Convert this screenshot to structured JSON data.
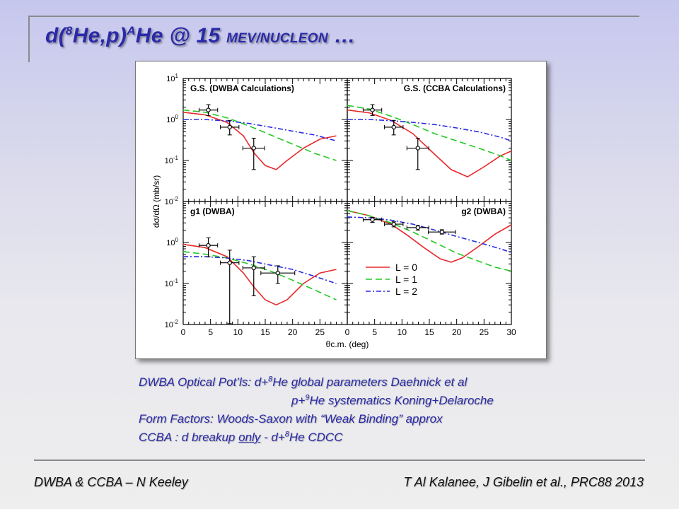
{
  "slide": {
    "title_pre": "d(",
    "title_sup1": "8",
    "title_mid": "He,p)",
    "title_sup2": "A",
    "title_post": "He @ 15 ",
    "title_small": "MEV/NUCLEON",
    "title_end": " …"
  },
  "notes": {
    "l1_a": "DWBA Optical Pot’ls:  d+",
    "l1_sup": "8",
    "l1_b": "He global parameters Daehnick et al",
    "l2_a": "p+",
    "l2_sup": "9",
    "l2_b": "He systematics  Koning+Delaroche",
    "l3": "Form Factors:  Woods-Saxon with “Weak Binding” approx",
    "l4_a": "CCBA :  d breakup ",
    "l4_u": "only",
    "l4_b": "  - d+",
    "l4_sup": "8",
    "l4_c": "He CDCC"
  },
  "footer": {
    "left": "DWBA & CCBA  – N Keeley",
    "right": "T Al Kalanee, J Gibelin et al., PRC88 2013"
  },
  "colors": {
    "title": "#2a2aa8",
    "L0": "#e8282b",
    "L1": "#22c922",
    "L2": "#2a2ae0"
  },
  "chart_data": {
    "type": "line",
    "xlabel": "θc.m. (deg)",
    "ylabel": "dσ/dΩ (mb/sr)",
    "xlim": [
      0,
      30
    ],
    "ylim": [
      0.01,
      10
    ],
    "yscale": "log",
    "x_ticks": [
      "0",
      "5",
      "10",
      "15",
      "20",
      "25"
    ],
    "x_ticks_last": [
      "0",
      "5",
      "10",
      "15",
      "20",
      "25",
      "30"
    ],
    "y_ticks_top": [
      "10-2",
      "10-1",
      "100",
      "101"
    ],
    "y_ticks_bottom": [
      "10-2",
      "10-1",
      "100"
    ],
    "legend": [
      {
        "label": "L = 0",
        "color": "#e8282b",
        "dash": ""
      },
      {
        "label": "L = 1",
        "color": "#22c922",
        "dash": "9,5"
      },
      {
        "label": "L = 2",
        "color": "#2a2ae0",
        "dash": "7,3,2,3"
      }
    ],
    "panels": [
      {
        "title": "G.S. (DWBA Calculations)",
        "points": [
          {
            "x": 4.6,
            "y": 1.7,
            "xerr": 1.7,
            "ylo": 1.25,
            "yhi": 2.3
          },
          {
            "x": 8.5,
            "y": 0.65,
            "xerr": 1.7,
            "ylo": 0.42,
            "yhi": 0.95
          },
          {
            "x": 12.9,
            "y": 0.2,
            "xerr": 2.0,
            "ylo": 0.06,
            "yhi": 0.35
          }
        ],
        "curves": {
          "L0": [
            [
              0,
              1.5
            ],
            [
              4,
              1.3
            ],
            [
              8,
              0.85
            ],
            [
              11,
              0.4
            ],
            [
              13,
              0.15
            ],
            [
              15,
              0.075
            ],
            [
              17,
              0.06
            ],
            [
              19,
              0.1
            ],
            [
              22,
              0.2
            ],
            [
              25,
              0.33
            ],
            [
              28,
              0.4
            ]
          ],
          "L1": [
            [
              0,
              1.7
            ],
            [
              4,
              1.5
            ],
            [
              8,
              1.1
            ],
            [
              12,
              0.7
            ],
            [
              16,
              0.42
            ],
            [
              20,
              0.25
            ],
            [
              24,
              0.15
            ],
            [
              28,
              0.1
            ]
          ],
          "L2": [
            [
              0,
              1.0
            ],
            [
              4,
              1.0
            ],
            [
              8,
              0.92
            ],
            [
              12,
              0.8
            ],
            [
              16,
              0.65
            ],
            [
              20,
              0.52
            ],
            [
              24,
              0.42
            ],
            [
              28,
              0.3
            ]
          ]
        }
      },
      {
        "title": "G.S. (CCBA Calculations)",
        "points": [
          {
            "x": 4.6,
            "y": 1.7,
            "xerr": 1.7,
            "ylo": 1.25,
            "yhi": 2.3
          },
          {
            "x": 8.5,
            "y": 0.65,
            "xerr": 1.7,
            "ylo": 0.42,
            "yhi": 0.95
          },
          {
            "x": 12.9,
            "y": 0.2,
            "xerr": 2.0,
            "ylo": 0.06,
            "yhi": 0.35
          }
        ],
        "curves": {
          "L0": [
            [
              0,
              1.7
            ],
            [
              4,
              1.45
            ],
            [
              8,
              0.95
            ],
            [
              12,
              0.45
            ],
            [
              16,
              0.14
            ],
            [
              19,
              0.06
            ],
            [
              22,
              0.04
            ],
            [
              25,
              0.07
            ],
            [
              28,
              0.13
            ],
            [
              30,
              0.17
            ]
          ],
          "L1": [
            [
              0,
              2.2
            ],
            [
              4,
              1.8
            ],
            [
              8,
              1.2
            ],
            [
              12,
              0.75
            ],
            [
              16,
              0.45
            ],
            [
              20,
              0.3
            ],
            [
              24,
              0.2
            ],
            [
              28,
              0.13
            ],
            [
              30,
              0.1
            ]
          ],
          "L2": [
            [
              0,
              1.0
            ],
            [
              4,
              1.0
            ],
            [
              8,
              0.93
            ],
            [
              12,
              0.85
            ],
            [
              16,
              0.75
            ],
            [
              20,
              0.62
            ],
            [
              24,
              0.5
            ],
            [
              28,
              0.37
            ],
            [
              30,
              0.3
            ]
          ]
        }
      },
      {
        "title": "g1 (DWBA)",
        "points": [
          {
            "x": 4.6,
            "y": 0.85,
            "xerr": 1.7,
            "ylo": 0.45,
            "yhi": 1.3
          },
          {
            "x": 8.5,
            "y": 0.32,
            "xerr": 1.7,
            "ylo": 0.0105,
            "yhi": 0.65
          },
          {
            "x": 12.9,
            "y": 0.24,
            "xerr": 2.0,
            "ylo": 0.05,
            "yhi": 0.45
          },
          {
            "x": 17.3,
            "y": 0.18,
            "xerr": 3.1,
            "ylo": 0.1,
            "yhi": 0.27
          }
        ],
        "curves": {
          "L0": [
            [
              0,
              0.9
            ],
            [
              4,
              0.75
            ],
            [
              8,
              0.45
            ],
            [
              11,
              0.18
            ],
            [
              13,
              0.08
            ],
            [
              15,
              0.04
            ],
            [
              17,
              0.03
            ],
            [
              19,
              0.04
            ],
            [
              22,
              0.1
            ],
            [
              25,
              0.18
            ],
            [
              28,
              0.22
            ]
          ],
          "L1": [
            [
              0,
              0.6
            ],
            [
              4,
              0.52
            ],
            [
              8,
              0.42
            ],
            [
              12,
              0.3
            ],
            [
              16,
              0.2
            ],
            [
              20,
              0.12
            ],
            [
              24,
              0.07
            ],
            [
              28,
              0.04
            ]
          ],
          "L2": [
            [
              0,
              0.45
            ],
            [
              4,
              0.45
            ],
            [
              8,
              0.42
            ],
            [
              12,
              0.36
            ],
            [
              16,
              0.28
            ],
            [
              20,
              0.22
            ],
            [
              24,
              0.15
            ],
            [
              28,
              0.1
            ]
          ]
        }
      },
      {
        "title": "g2 (DWBA)",
        "points": [
          {
            "x": 4.6,
            "y": 3.6,
            "xerr": 1.7,
            "ylo": 3.1,
            "yhi": 4.1
          },
          {
            "x": 8.5,
            "y": 2.8,
            "xerr": 1.7,
            "ylo": 2.4,
            "yhi": 3.2
          },
          {
            "x": 12.9,
            "y": 2.3,
            "xerr": 2.0,
            "ylo": 2.0,
            "yhi": 2.6
          },
          {
            "x": 17.3,
            "y": 1.8,
            "xerr": 2.5,
            "ylo": 1.6,
            "yhi": 2.05
          }
        ],
        "curves": {
          "L0": [
            [
              0,
              6
            ],
            [
              4,
              4.5
            ],
            [
              8,
              2.8
            ],
            [
              11,
              1.5
            ],
            [
              14,
              0.75
            ],
            [
              17,
              0.4
            ],
            [
              19,
              0.33
            ],
            [
              21,
              0.42
            ],
            [
              24,
              0.8
            ],
            [
              27,
              1.6
            ],
            [
              30,
              2.7
            ]
          ],
          "L1": [
            [
              0,
              6
            ],
            [
              4,
              4.5
            ],
            [
              8,
              3.0
            ],
            [
              12,
              1.8
            ],
            [
              16,
              1.0
            ],
            [
              20,
              0.55
            ],
            [
              24,
              0.35
            ],
            [
              27,
              0.25
            ],
            [
              30,
              0.2
            ]
          ],
          "L2": [
            [
              0,
              4.2
            ],
            [
              4,
              4.0
            ],
            [
              8,
              3.5
            ],
            [
              12,
              2.8
            ],
            [
              16,
              2.0
            ],
            [
              20,
              1.4
            ],
            [
              24,
              1.0
            ],
            [
              28,
              0.7
            ],
            [
              30,
              0.57
            ]
          ]
        }
      }
    ]
  }
}
